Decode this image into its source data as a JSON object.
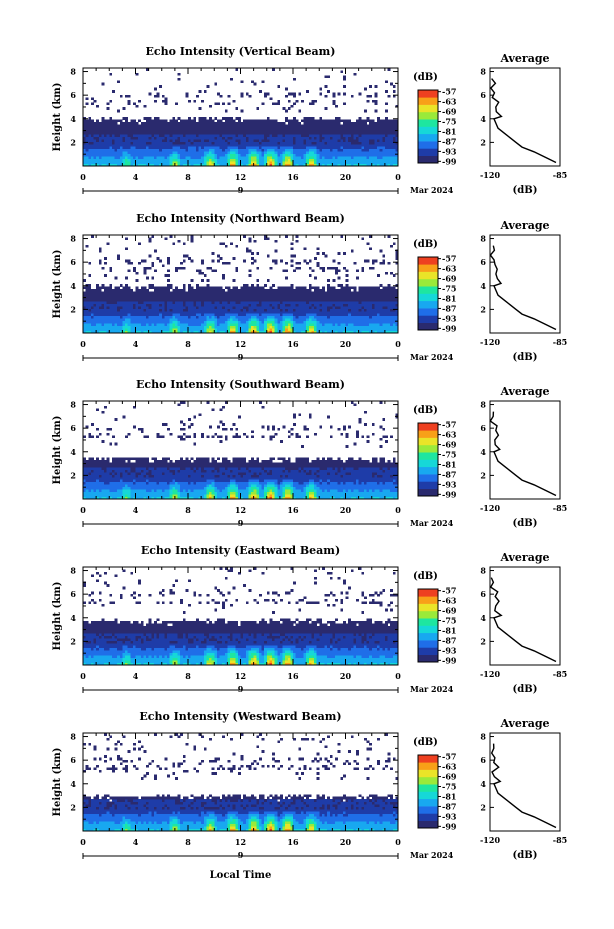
{
  "chart_data": {
    "type": "heatmap",
    "panels": [
      {
        "title": "Echo Intensity (Vertical Beam)",
        "echo_top_km": 4.05,
        "noise_density": 0.18
      },
      {
        "title": "Echo Intensity (Northward Beam)",
        "echo_top_km": 4.0,
        "noise_density": 0.28
      },
      {
        "title": "Echo Intensity (Southward Beam)",
        "echo_top_km": 3.5,
        "noise_density": 0.14
      },
      {
        "title": "Echo Intensity (Eastward Beam)",
        "echo_top_km": 3.8,
        "noise_density": 0.16
      },
      {
        "title": "Echo Intensity (Westward Beam)",
        "echo_top_km": 3.0,
        "noise_density": 0.22
      }
    ],
    "y_label": "Height (km)",
    "y_ticks": [
      "2",
      "4",
      "6",
      "8"
    ],
    "ylim": [
      0,
      8.3
    ],
    "x_ticks": [
      "0",
      "4",
      "8",
      "12",
      "16",
      "20",
      "0"
    ],
    "xlim": [
      0,
      24
    ],
    "day_label": "9",
    "date_label": "Mar 2024",
    "x_label": "Local Time",
    "colorbar": {
      "unit": "(dB)",
      "tick_labels": [
        "-57",
        "-63",
        "-69",
        "-75",
        "-81",
        "-87",
        "-93",
        "-99"
      ],
      "range": [
        -100,
        -56
      ],
      "colors": [
        "#2a2a6e",
        "#1e3ca8",
        "#1f6ee8",
        "#18a8f0",
        "#16d8d8",
        "#1ee6a0",
        "#9aea3a",
        "#eae428",
        "#f8a018",
        "#ee4020"
      ]
    },
    "average_profile": {
      "title": "Average",
      "x_label": "(dB)",
      "x_ticks": [
        "-120",
        "-85"
      ],
      "xlim": [
        -120,
        -85
      ],
      "y_ticks": [
        "2",
        "4",
        "6",
        "8"
      ],
      "ylim": [
        0,
        8.3
      ],
      "heights_km": [
        0.3,
        0.8,
        1.2,
        1.6,
        2.0,
        2.4,
        2.8,
        3.2,
        3.6,
        4.0,
        4.2,
        4.6,
        5.0,
        5.4,
        5.8,
        6.2,
        6.6,
        7.0,
        7.4
      ],
      "values_db": [
        -87,
        -93,
        -98,
        -104,
        -107,
        -110,
        -113,
        -116,
        -117,
        -118,
        -115,
        -117,
        -118,
        -116,
        -118,
        -117,
        -119,
        -118,
        -119
      ]
    },
    "bursts_local_hour": [
      3.3,
      7.0,
      9.7,
      11.4,
      13.0,
      14.3,
      15.6,
      17.4
    ]
  }
}
